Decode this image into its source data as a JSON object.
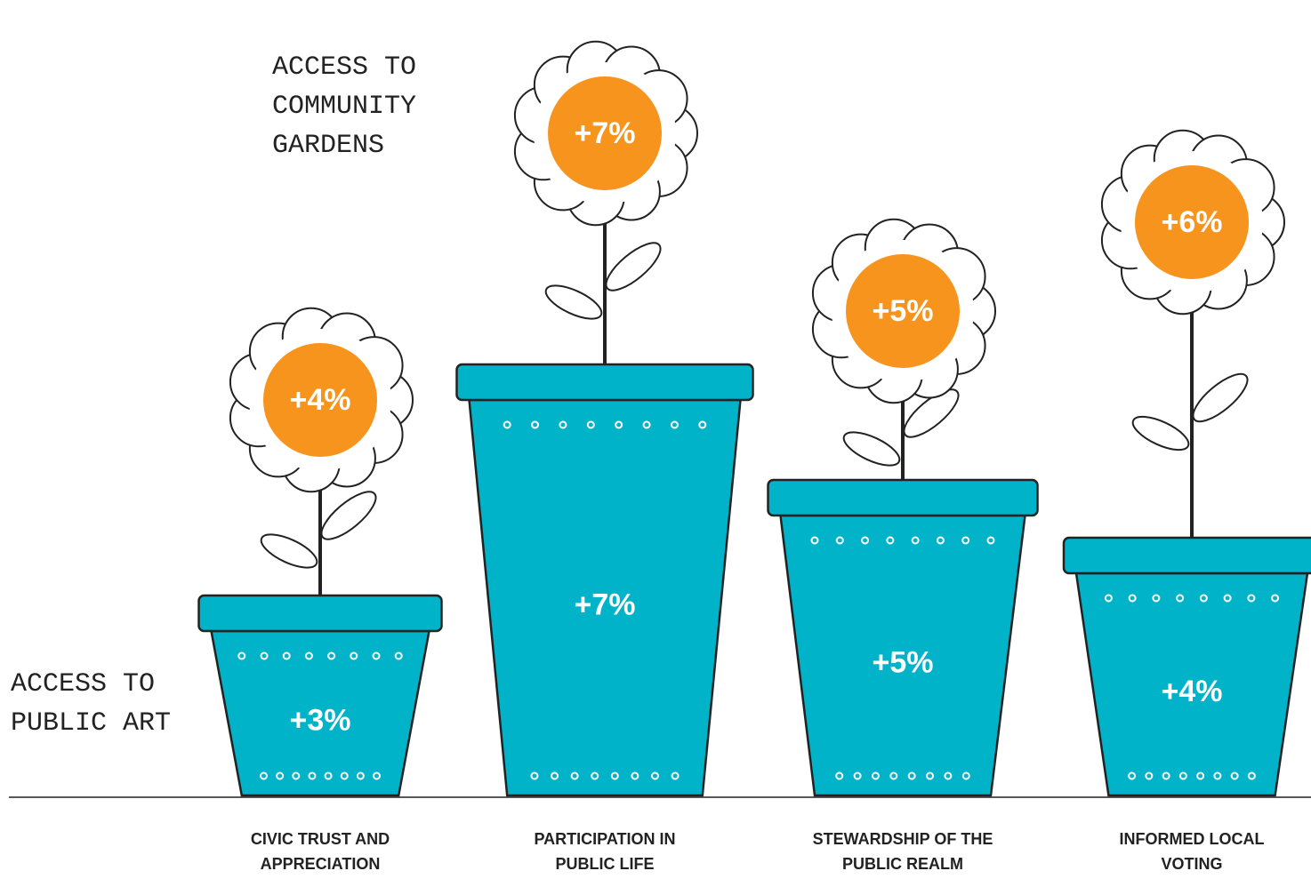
{
  "chart_data": {
    "type": "pictograph",
    "categories": [
      "CIVIC TRUST AND APPRECIATION",
      "PARTICIPATION IN PUBLIC LIFE",
      "STEWARDSHIP OF THE PUBLIC REALM",
      "INFORMED LOCAL VOTING"
    ],
    "series": [
      {
        "name": "ACCESS TO PUBLIC ART",
        "color": "#00b3c8",
        "values": [
          3,
          7,
          5,
          4
        ],
        "value_labels": [
          "+3%",
          "+7%",
          "+5%",
          "+4%"
        ]
      },
      {
        "name": "ACCESS TO COMMUNITY GARDENS",
        "color": "#f7941d",
        "values": [
          4,
          7,
          5,
          6
        ],
        "value_labels": [
          "+4%",
          "+7%",
          "+5%",
          "+6%"
        ]
      }
    ]
  }
}
